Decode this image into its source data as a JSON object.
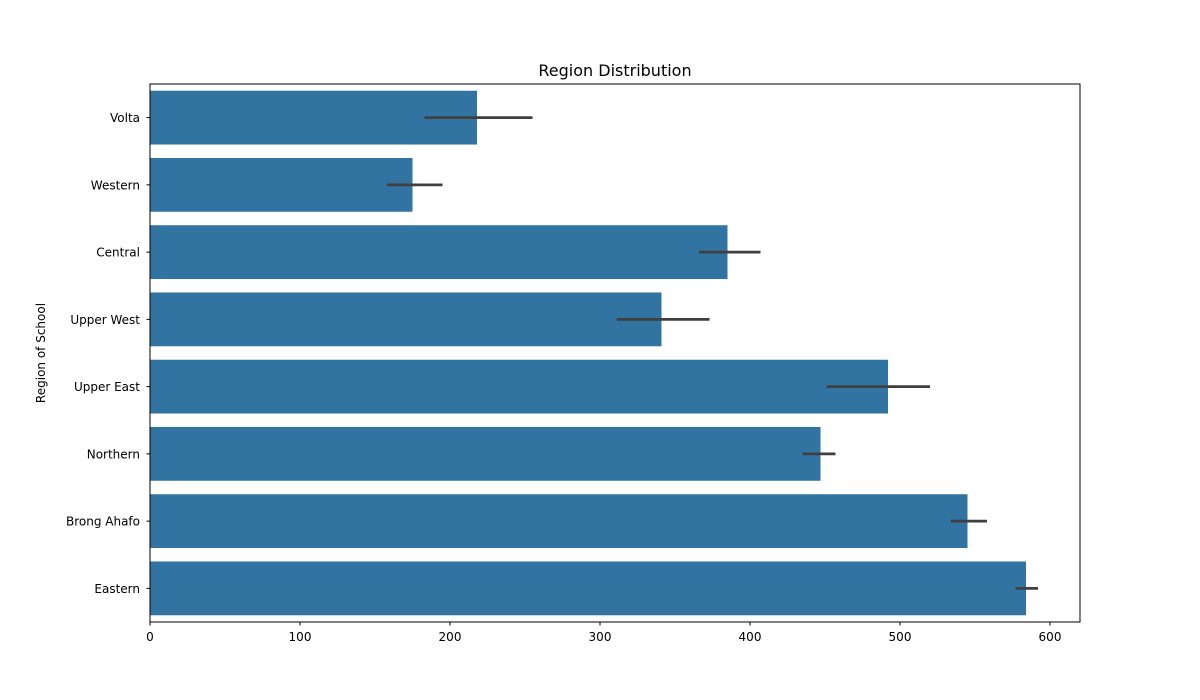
{
  "chart_data": {
    "type": "bar",
    "orientation": "horizontal",
    "title": "Region Distribution",
    "xlabel": "",
    "ylabel": "Region of School",
    "categories": [
      "Volta",
      "Western",
      "Central",
      "Upper West",
      "Upper East",
      "Northern",
      "Brong Ahafo",
      "Eastern"
    ],
    "values": [
      218,
      175,
      385,
      341,
      492,
      447,
      545,
      584
    ],
    "error_low": [
      183,
      158,
      366,
      311,
      451,
      435,
      534,
      577
    ],
    "error_high": [
      255,
      195,
      407,
      373,
      520,
      457,
      558,
      592
    ],
    "xlim": [
      0,
      620
    ],
    "xticks": [
      0,
      100,
      200,
      300,
      400,
      500,
      600
    ],
    "grid": false,
    "legend": "none",
    "bar_color": "#3274a1",
    "error_color": "#3f3f3f"
  }
}
